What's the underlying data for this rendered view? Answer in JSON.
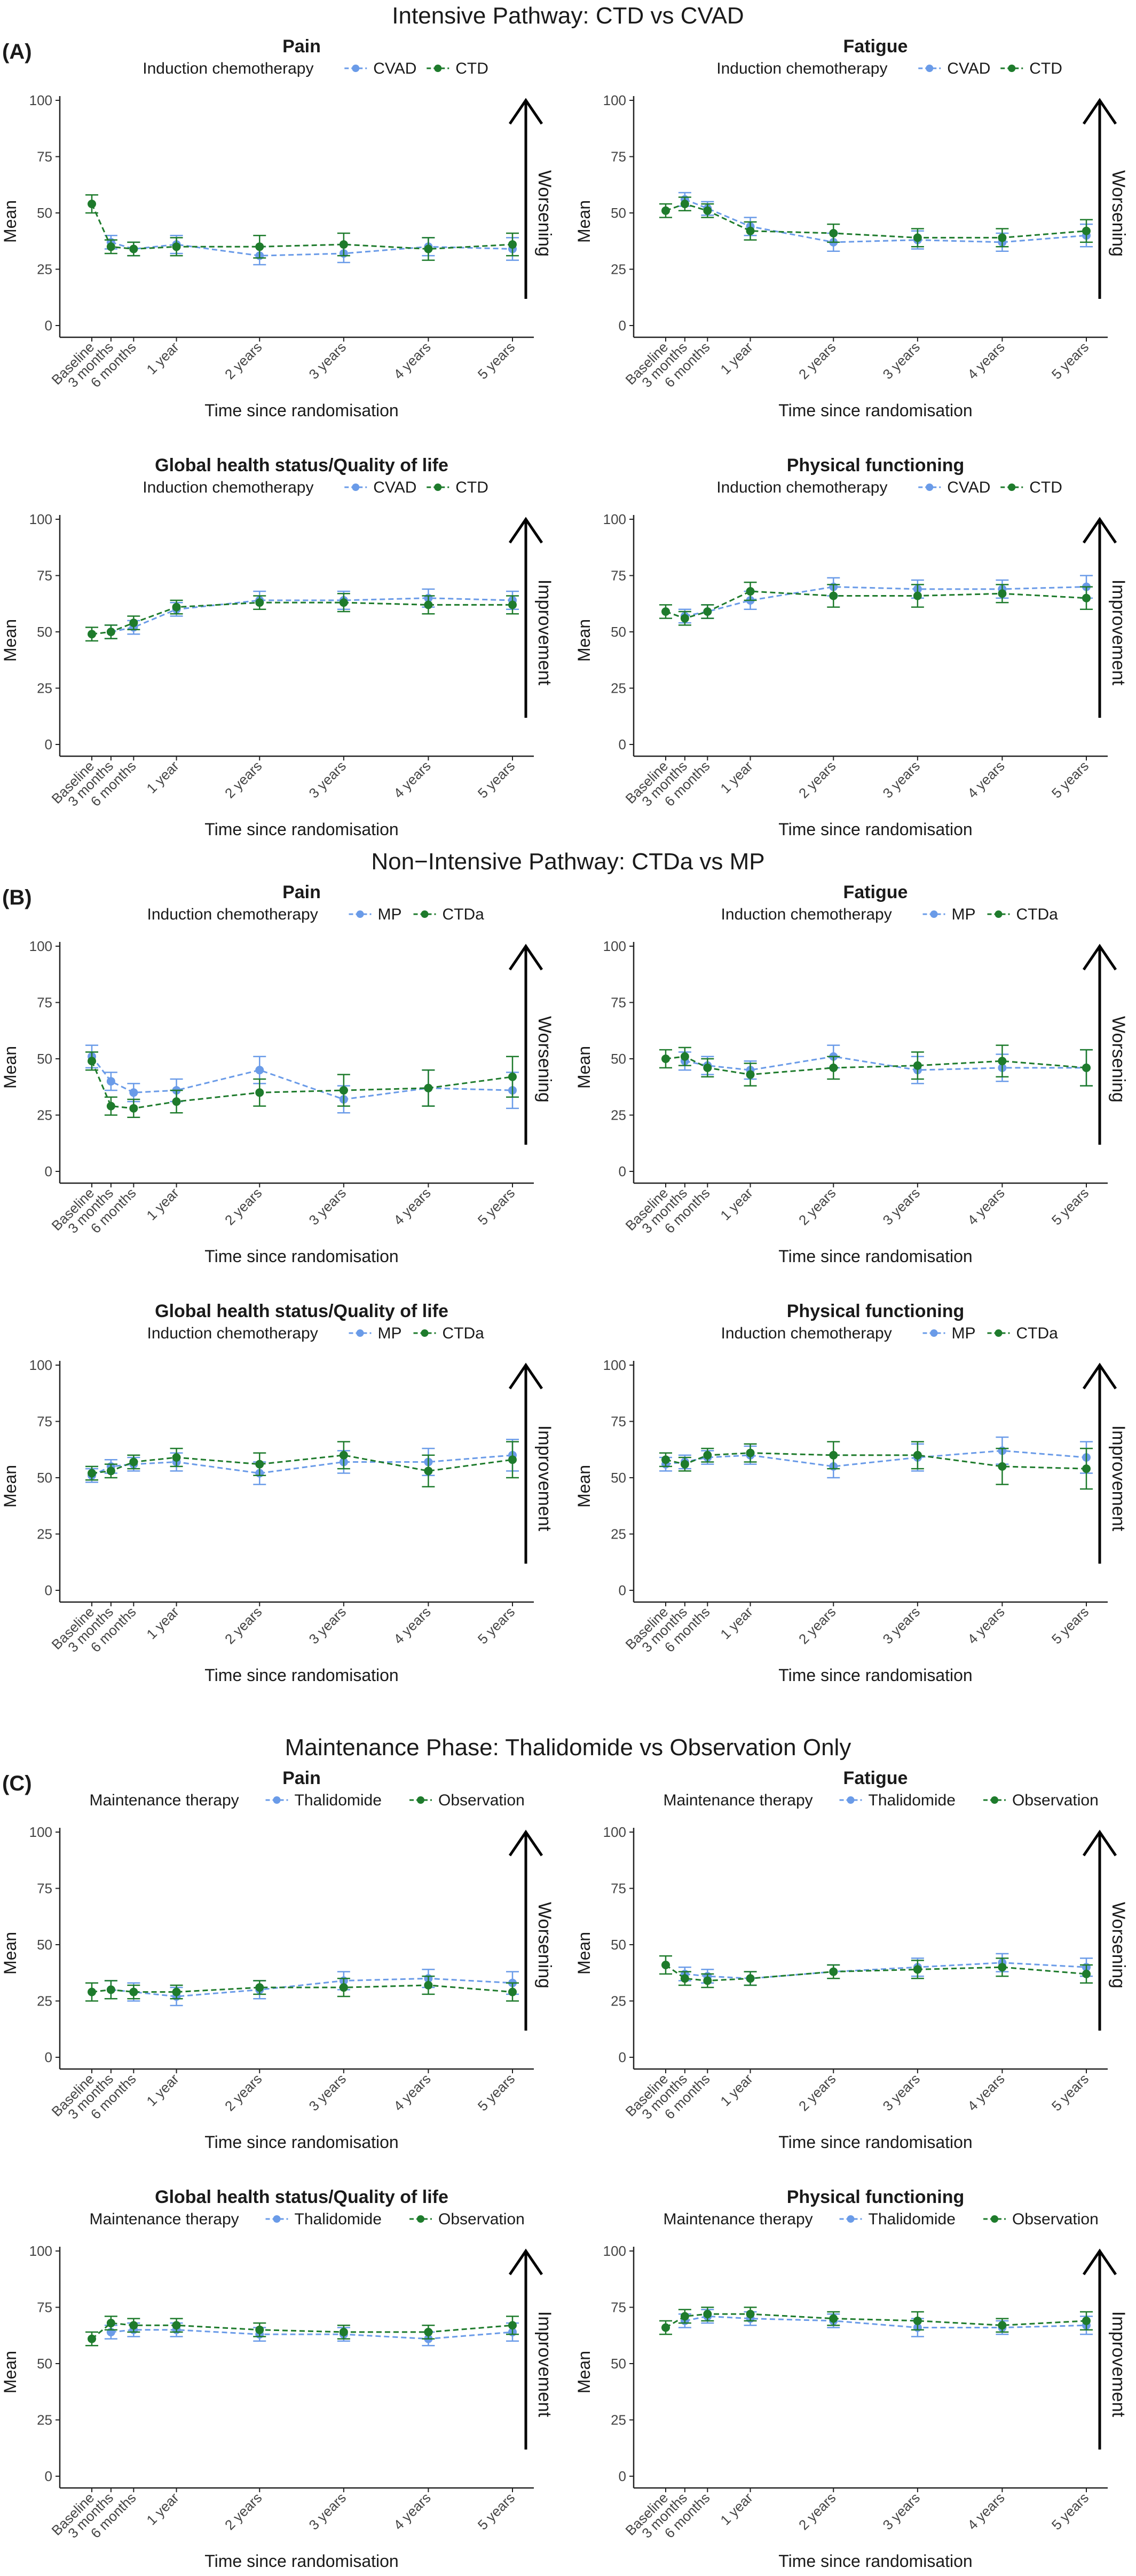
{
  "chart_data": {
    "type": "line",
    "x_categories": [
      "Baseline",
      "3 months",
      "6 months",
      "1 year",
      "2 years",
      "3 years",
      "4 years",
      "5 years"
    ],
    "ylabel": "Mean",
    "xlabel": "Time since randomisation",
    "ylim": [
      0,
      100
    ],
    "y_ticks": [
      "0",
      "25",
      "50",
      "75",
      "100"
    ],
    "grid": false,
    "sections": [
      {
        "letter": "(A)",
        "title": "Intensive Pathway: CTD vs CVAD",
        "legend_title": "Induction chemotherapy",
        "panels": [
          {
            "title": "Pain",
            "arrow_label": "Worsening",
            "series": [
              {
                "name": "CVAD",
                "color": "#6a9be8",
                "values": [
                  null,
                  37,
                  34,
                  36,
                  31,
                  32,
                  35,
                  34
                ],
                "err": [
                  null,
                  3,
                  3,
                  4,
                  4,
                  4,
                  4,
                  5
                ]
              },
              {
                "name": "CTD",
                "color": "#1e7b2c",
                "values": [
                  54,
                  35,
                  34,
                  35,
                  35,
                  36,
                  34,
                  36
                ],
                "err": [
                  4,
                  3,
                  3,
                  4,
                  5,
                  5,
                  5,
                  5
                ]
              }
            ]
          },
          {
            "title": "Fatigue",
            "arrow_label": "Worsening",
            "series": [
              {
                "name": "CVAD",
                "color": "#6a9be8",
                "values": [
                  null,
                  56,
                  52,
                  44,
                  37,
                  38,
                  37,
                  40
                ],
                "err": [
                  null,
                  3,
                  3,
                  4,
                  4,
                  4,
                  4,
                  5
                ]
              },
              {
                "name": "CTD",
                "color": "#1e7b2c",
                "values": [
                  51,
                  54,
                  51,
                  42,
                  41,
                  39,
                  39,
                  42
                ],
                "err": [
                  3,
                  3,
                  3,
                  4,
                  4,
                  4,
                  4,
                  5
                ]
              }
            ]
          },
          {
            "title": "Global health status/Quality of life",
            "arrow_label": "Improvement",
            "series": [
              {
                "name": "CVAD",
                "color": "#6a9be8",
                "values": [
                  null,
                  50,
                  52,
                  60,
                  64,
                  64,
                  65,
                  64
                ],
                "err": [
                  null,
                  3,
                  3,
                  3,
                  4,
                  4,
                  4,
                  4
                ]
              },
              {
                "name": "CTD",
                "color": "#1e7b2c",
                "values": [
                  49,
                  50,
                  54,
                  61,
                  63,
                  63,
                  62,
                  62
                ],
                "err": [
                  3,
                  3,
                  3,
                  3,
                  3,
                  4,
                  4,
                  4
                ]
              }
            ]
          },
          {
            "title": "Physical functioning",
            "arrow_label": "Improvement",
            "series": [
              {
                "name": "CVAD",
                "color": "#6a9be8",
                "values": [
                  null,
                  57,
                  59,
                  64,
                  70,
                  69,
                  69,
                  70
                ],
                "err": [
                  null,
                  3,
                  3,
                  4,
                  4,
                  4,
                  4,
                  5
                ]
              },
              {
                "name": "CTD",
                "color": "#1e7b2c",
                "values": [
                  59,
                  56,
                  59,
                  68,
                  66,
                  66,
                  67,
                  65
                ],
                "err": [
                  3,
                  3,
                  3,
                  4,
                  5,
                  5,
                  4,
                  5
                ]
              }
            ]
          }
        ]
      },
      {
        "letter": "(B)",
        "title": "Non−Intensive Pathway: CTDa vs MP",
        "legend_title": "Induction chemotherapy",
        "panels": [
          {
            "title": "Pain",
            "arrow_label": "Worsening",
            "series": [
              {
                "name": "MP",
                "color": "#6a9be8",
                "values": [
                  51,
                  40,
                  35,
                  36,
                  45,
                  32,
                  37,
                  36
                ],
                "err": [
                  5,
                  4,
                  4,
                  5,
                  6,
                  6,
                  8,
                  8
                ]
              },
              {
                "name": "CTDa",
                "color": "#1e7b2c",
                "values": [
                  49,
                  29,
                  28,
                  31,
                  35,
                  36,
                  37,
                  42
                ],
                "err": [
                  4,
                  4,
                  4,
                  5,
                  6,
                  7,
                  8,
                  9
                ]
              }
            ]
          },
          {
            "title": "Fatigue",
            "arrow_label": "Worsening",
            "series": [
              {
                "name": "MP",
                "color": "#6a9be8",
                "values": [
                  null,
                  49,
                  47,
                  45,
                  51,
                  45,
                  46,
                  46
                ],
                "err": [
                  null,
                  4,
                  4,
                  4,
                  5,
                  6,
                  6,
                  8
                ]
              },
              {
                "name": "CTDa",
                "color": "#1e7b2c",
                "values": [
                  50,
                  51,
                  46,
                  43,
                  46,
                  47,
                  49,
                  46
                ],
                "err": [
                  4,
                  4,
                  4,
                  5,
                  5,
                  6,
                  7,
                  8
                ]
              }
            ]
          },
          {
            "title": "Global health status/Quality of life",
            "arrow_label": "Improvement",
            "series": [
              {
                "name": "MP",
                "color": "#6a9be8",
                "values": [
                  51,
                  55,
                  56,
                  57,
                  52,
                  57,
                  57,
                  60
                ],
                "err": [
                  3,
                  3,
                  3,
                  4,
                  5,
                  5,
                  6,
                  7
                ]
              },
              {
                "name": "CTDa",
                "color": "#1e7b2c",
                "values": [
                  52,
                  53,
                  57,
                  59,
                  56,
                  60,
                  53,
                  58
                ],
                "err": [
                  3,
                  3,
                  3,
                  4,
                  5,
                  6,
                  7,
                  8
                ]
              }
            ]
          },
          {
            "title": "Physical functioning",
            "arrow_label": "Improvement",
            "series": [
              {
                "name": "MP",
                "color": "#6a9be8",
                "values": [
                  56,
                  57,
                  59,
                  60,
                  55,
                  59,
                  62,
                  59
                ],
                "err": [
                  3,
                  3,
                  3,
                  4,
                  5,
                  6,
                  6,
                  7
                ]
              },
              {
                "name": "CTDa",
                "color": "#1e7b2c",
                "values": [
                  58,
                  56,
                  60,
                  61,
                  60,
                  60,
                  55,
                  54
                ],
                "err": [
                  3,
                  3,
                  3,
                  4,
                  6,
                  6,
                  8,
                  9
                ]
              }
            ]
          }
        ]
      },
      {
        "letter": "(C)",
        "title": "Maintenance Phase: Thalidomide vs Observation Only",
        "legend_title": "Maintenance therapy",
        "panels": [
          {
            "title": "Pain",
            "arrow_label": "Worsening",
            "series": [
              {
                "name": "Thalidomide",
                "color": "#6a9be8",
                "values": [
                  null,
                  30,
                  29,
                  27,
                  30,
                  34,
                  35,
                  33
                ],
                "err": [
                  null,
                  4,
                  4,
                  4,
                  4,
                  4,
                  4,
                  5
                ]
              },
              {
                "name": "Observation",
                "color": "#1e7b2c",
                "values": [
                  29,
                  30,
                  29,
                  29,
                  31,
                  31,
                  32,
                  29
                ],
                "err": [
                  4,
                  4,
                  3,
                  3,
                  3,
                  4,
                  4,
                  4
                ]
              }
            ]
          },
          {
            "title": "Fatigue",
            "arrow_label": "Worsening",
            "series": [
              {
                "name": "Thalidomide",
                "color": "#6a9be8",
                "values": [
                  null,
                  37,
                  36,
                  35,
                  38,
                  40,
                  42,
                  40
                ],
                "err": [
                  null,
                  3,
                  3,
                  3,
                  3,
                  4,
                  4,
                  4
                ]
              },
              {
                "name": "Observation",
                "color": "#1e7b2c",
                "values": [
                  41,
                  35,
                  34,
                  35,
                  38,
                  39,
                  40,
                  37
                ],
                "err": [
                  4,
                  3,
                  3,
                  3,
                  3,
                  4,
                  4,
                  4
                ]
              }
            ]
          },
          {
            "title": "Global health status/Quality of life",
            "arrow_label": "Improvement",
            "series": [
              {
                "name": "Thalidomide",
                "color": "#6a9be8",
                "values": [
                  null,
                  64,
                  65,
                  65,
                  63,
                  63,
                  61,
                  64
                ],
                "err": [
                  null,
                  3,
                  3,
                  3,
                  3,
                  3,
                  3,
                  4
                ]
              },
              {
                "name": "Observation",
                "color": "#1e7b2c",
                "values": [
                  61,
                  68,
                  67,
                  67,
                  65,
                  64,
                  64,
                  67
                ],
                "err": [
                  3,
                  3,
                  3,
                  3,
                  3,
                  3,
                  3,
                  4
                ]
              }
            ]
          },
          {
            "title": "Physical functioning",
            "arrow_label": "Improvement",
            "series": [
              {
                "name": "Thalidomide",
                "color": "#6a9be8",
                "values": [
                  null,
                  69,
                  71,
                  70,
                  69,
                  66,
                  66,
                  67
                ],
                "err": [
                  null,
                  3,
                  3,
                  3,
                  3,
                  4,
                  3,
                  4
                ]
              },
              {
                "name": "Observation",
                "color": "#1e7b2c",
                "values": [
                  66,
                  71,
                  72,
                  72,
                  70,
                  69,
                  67,
                  69
                ],
                "err": [
                  3,
                  3,
                  3,
                  3,
                  3,
                  4,
                  3,
                  4
                ]
              }
            ]
          }
        ]
      }
    ]
  }
}
